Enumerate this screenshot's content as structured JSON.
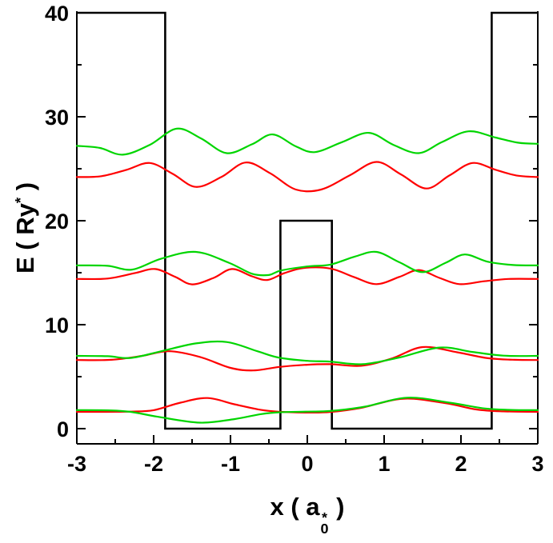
{
  "chart_data": {
    "type": "line",
    "title": "",
    "xlabel": {
      "pre": "x ( a",
      "sub": "0",
      "sup": "*",
      "post": " )"
    },
    "ylabel": {
      "pre": "E ( Ry",
      "sup": "*",
      "post": " )"
    },
    "xlim": [
      -3,
      3
    ],
    "ylim": [
      -1.46,
      40.15
    ],
    "x_ticks": [
      -3,
      -2,
      -1,
      0,
      1,
      2,
      3
    ],
    "y_ticks": [
      0,
      10,
      20,
      30,
      40
    ],
    "x_minor_step": 0.5,
    "y_minor_step": 5,
    "grid": false,
    "legend": null,
    "colors": {
      "potential": "#000000",
      "red_states": "#ff0000",
      "green_states": "#00d500"
    },
    "potential_profile": {
      "name": "double-quantum-well-potential",
      "units": {
        "x": "a0*",
        "E": "Ry*"
      },
      "outer_barrier_height": 40,
      "central_barrier_height": 20,
      "well_floor": 0,
      "vertices": [
        [
          -3,
          40
        ],
        [
          -1.85,
          40
        ],
        [
          -1.85,
          0
        ],
        [
          -0.35,
          0
        ],
        [
          -0.35,
          20
        ],
        [
          0.32,
          20
        ],
        [
          0.32,
          0
        ],
        [
          2.4,
          0
        ],
        [
          2.4,
          40
        ],
        [
          3,
          40
        ]
      ]
    },
    "series": [
      {
        "name": "state-1-red",
        "color": "#ff0000",
        "energy": 1.62,
        "points": [
          [
            -3,
            1.62
          ],
          [
            -2.6,
            1.62
          ],
          [
            -2.3,
            1.64
          ],
          [
            -2.0,
            1.78
          ],
          [
            -1.65,
            2.5
          ],
          [
            -1.3,
            2.95
          ],
          [
            -0.95,
            2.35
          ],
          [
            -0.6,
            1.8
          ],
          [
            -0.35,
            1.62
          ],
          [
            0,
            1.55
          ],
          [
            0.3,
            1.6
          ],
          [
            0.7,
            2.0
          ],
          [
            1.25,
            2.88
          ],
          [
            1.8,
            2.45
          ],
          [
            2.2,
            1.85
          ],
          [
            2.55,
            1.66
          ],
          [
            3,
            1.62
          ]
        ]
      },
      {
        "name": "state-1-green",
        "color": "#00d500",
        "energy": 1.78,
        "points": [
          [
            -3,
            1.78
          ],
          [
            -2.6,
            1.76
          ],
          [
            -2.3,
            1.62
          ],
          [
            -1.95,
            1.15
          ],
          [
            -1.4,
            0.58
          ],
          [
            -0.95,
            0.92
          ],
          [
            -0.6,
            1.4
          ],
          [
            -0.35,
            1.58
          ],
          [
            0,
            1.64
          ],
          [
            0.3,
            1.7
          ],
          [
            0.75,
            2.12
          ],
          [
            1.3,
            2.98
          ],
          [
            1.85,
            2.5
          ],
          [
            2.3,
            1.95
          ],
          [
            2.65,
            1.8
          ],
          [
            3,
            1.78
          ]
        ]
      },
      {
        "name": "state-2-red",
        "color": "#ff0000",
        "energy": 6.6,
        "points": [
          [
            -3,
            6.6
          ],
          [
            -2.55,
            6.62
          ],
          [
            -2.15,
            7.0
          ],
          [
            -1.8,
            7.45
          ],
          [
            -1.4,
            6.9
          ],
          [
            -1.0,
            5.85
          ],
          [
            -0.7,
            5.6
          ],
          [
            -0.35,
            5.95
          ],
          [
            0,
            6.15
          ],
          [
            0.3,
            6.2
          ],
          [
            0.7,
            6.05
          ],
          [
            1.1,
            6.75
          ],
          [
            1.5,
            7.85
          ],
          [
            1.95,
            7.35
          ],
          [
            2.35,
            6.78
          ],
          [
            2.7,
            6.62
          ],
          [
            3,
            6.6
          ]
        ]
      },
      {
        "name": "state-2-green",
        "color": "#00d500",
        "energy": 7.0,
        "points": [
          [
            -3,
            7.0
          ],
          [
            -2.6,
            6.97
          ],
          [
            -2.3,
            6.8
          ],
          [
            -1.9,
            7.45
          ],
          [
            -1.45,
            8.2
          ],
          [
            -1.05,
            8.33
          ],
          [
            -0.65,
            7.45
          ],
          [
            -0.38,
            6.85
          ],
          [
            0,
            6.52
          ],
          [
            0.3,
            6.45
          ],
          [
            0.72,
            6.2
          ],
          [
            1.2,
            6.85
          ],
          [
            1.72,
            7.8
          ],
          [
            2.15,
            7.38
          ],
          [
            2.55,
            7.02
          ],
          [
            3,
            7.0
          ]
        ]
      },
      {
        "name": "state-3-red",
        "color": "#ff0000",
        "energy": 14.4,
        "points": [
          [
            -3,
            14.4
          ],
          [
            -2.6,
            14.44
          ],
          [
            -2.25,
            14.95
          ],
          [
            -1.98,
            15.35
          ],
          [
            -1.72,
            14.6
          ],
          [
            -1.5,
            13.88
          ],
          [
            -1.22,
            14.5
          ],
          [
            -0.98,
            15.35
          ],
          [
            -0.72,
            14.65
          ],
          [
            -0.52,
            14.3
          ],
          [
            -0.3,
            14.95
          ],
          [
            -0.05,
            15.45
          ],
          [
            0.3,
            15.4
          ],
          [
            0.6,
            14.6
          ],
          [
            0.9,
            13.9
          ],
          [
            1.2,
            14.6
          ],
          [
            1.45,
            15.25
          ],
          [
            1.72,
            14.5
          ],
          [
            1.98,
            13.9
          ],
          [
            2.3,
            14.18
          ],
          [
            2.62,
            14.4
          ],
          [
            3,
            14.4
          ]
        ]
      },
      {
        "name": "state-3-green",
        "color": "#00d500",
        "energy": 15.7,
        "points": [
          [
            -3,
            15.7
          ],
          [
            -2.6,
            15.66
          ],
          [
            -2.28,
            15.3
          ],
          [
            -1.9,
            16.35
          ],
          [
            -1.45,
            17.0
          ],
          [
            -1.02,
            15.95
          ],
          [
            -0.72,
            14.9
          ],
          [
            -0.5,
            14.78
          ],
          [
            -0.35,
            15.2
          ],
          [
            0,
            15.6
          ],
          [
            0.3,
            15.78
          ],
          [
            0.62,
            16.55
          ],
          [
            0.9,
            17.0
          ],
          [
            1.2,
            16.0
          ],
          [
            1.5,
            15.05
          ],
          [
            1.8,
            15.95
          ],
          [
            2.05,
            16.75
          ],
          [
            2.35,
            16.05
          ],
          [
            2.68,
            15.74
          ],
          [
            3,
            15.7
          ]
        ]
      },
      {
        "name": "state-4-red",
        "color": "#ff0000",
        "energy": 24.2,
        "points": [
          [
            -3,
            24.2
          ],
          [
            -2.68,
            24.28
          ],
          [
            -2.35,
            24.9
          ],
          [
            -2.05,
            25.55
          ],
          [
            -1.75,
            24.5
          ],
          [
            -1.45,
            23.25
          ],
          [
            -1.12,
            24.2
          ],
          [
            -0.8,
            25.6
          ],
          [
            -0.48,
            24.55
          ],
          [
            -0.15,
            23.0
          ],
          [
            0.18,
            23.0
          ],
          [
            0.55,
            24.35
          ],
          [
            0.9,
            25.65
          ],
          [
            1.22,
            24.45
          ],
          [
            1.55,
            23.1
          ],
          [
            1.85,
            24.35
          ],
          [
            2.15,
            25.55
          ],
          [
            2.45,
            24.9
          ],
          [
            2.72,
            24.35
          ],
          [
            3,
            24.2
          ]
        ]
      },
      {
        "name": "state-4-green",
        "color": "#00d500",
        "energy": 27.3,
        "points": [
          [
            -3,
            27.2
          ],
          [
            -2.7,
            27.0
          ],
          [
            -2.4,
            26.35
          ],
          [
            -2.05,
            27.3
          ],
          [
            -1.7,
            28.85
          ],
          [
            -1.38,
            27.9
          ],
          [
            -1.05,
            26.5
          ],
          [
            -0.72,
            27.35
          ],
          [
            -0.45,
            28.3
          ],
          [
            -0.15,
            27.15
          ],
          [
            0.1,
            26.6
          ],
          [
            0.45,
            27.55
          ],
          [
            0.8,
            28.45
          ],
          [
            1.12,
            27.3
          ],
          [
            1.45,
            26.5
          ],
          [
            1.75,
            27.55
          ],
          [
            2.1,
            28.6
          ],
          [
            2.45,
            28.0
          ],
          [
            2.75,
            27.5
          ],
          [
            3,
            27.4
          ]
        ]
      }
    ]
  }
}
